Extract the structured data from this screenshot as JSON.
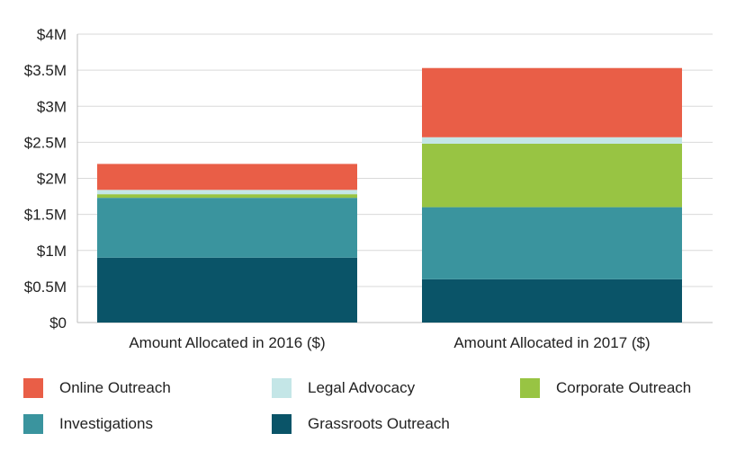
{
  "chart_data": {
    "type": "bar",
    "stacked": true,
    "categories": [
      "Amount Allocated in 2016 ($)",
      "Amount Allocated in 2017 ($)"
    ],
    "series": [
      {
        "name": "Grassroots Outreach",
        "color": "#0a5468",
        "values": [
          0.9,
          0.6
        ]
      },
      {
        "name": "Investigations",
        "color": "#3a949e",
        "values": [
          0.83,
          1.0
        ]
      },
      {
        "name": "Corporate Outreach",
        "color": "#98c443",
        "values": [
          0.05,
          0.88
        ]
      },
      {
        "name": "Legal Advocacy",
        "color": "#c4e6e7",
        "values": [
          0.06,
          0.09
        ]
      },
      {
        "name": "Online Outreach",
        "color": "#e95e47",
        "values": [
          0.36,
          0.96
        ]
      }
    ],
    "ytick_labels": [
      "$0",
      "$0.5M",
      "$1M",
      "$1.5M",
      "$2M",
      "$2.5M",
      "$3M",
      "$3.5M",
      "$4M"
    ],
    "ylim": [
      0,
      4
    ],
    "ystep": 0.5,
    "grid": true,
    "legend_position": "bottom",
    "legend_order": [
      "Online Outreach",
      "Legal Advocacy",
      "Corporate Outreach",
      "Investigations",
      "Grassroots Outreach"
    ]
  }
}
